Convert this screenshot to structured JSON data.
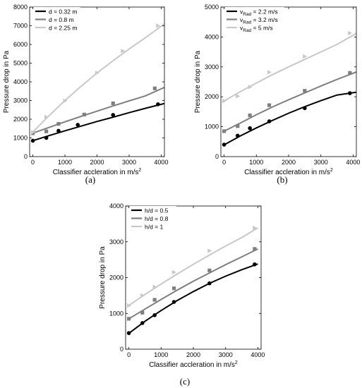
{
  "chart_data": [
    {
      "panel": "(a)",
      "type": "line",
      "xlabel": "Classifier accleration in m/s",
      "xlabel_sup": "2",
      "ylabel": "Pressure drop in Pa",
      "xlim": [
        -100,
        4100
      ],
      "ylim": [
        0,
        8000
      ],
      "xticks": [
        0,
        1000,
        2000,
        3000,
        4000
      ],
      "yticks": [
        0,
        1000,
        2000,
        3000,
        4000,
        5000,
        6000,
        7000,
        8000
      ],
      "legend_position": "top-left",
      "series": [
        {
          "name": "d = 0.32 m",
          "color": "#000000",
          "marker": "circle",
          "points": [
            [
              0,
              850
            ],
            [
              420,
              1000
            ],
            [
              800,
              1380
            ],
            [
              1400,
              1700
            ],
            [
              2500,
              2230
            ],
            [
              3900,
              2800
            ]
          ],
          "fit": [
            [
              -20,
              840
            ],
            [
              500,
              1120
            ],
            [
              1000,
              1380
            ],
            [
              1500,
              1630
            ],
            [
              2000,
              1880
            ],
            [
              2500,
              2110
            ],
            [
              3000,
              2350
            ],
            [
              3500,
              2580
            ],
            [
              4100,
              2840
            ]
          ]
        },
        {
          "name": "d = 0.8 m",
          "color": "#7f7f7f",
          "marker": "square",
          "points": [
            [
              0,
              1250
            ],
            [
              420,
              1350
            ],
            [
              800,
              1750
            ],
            [
              1600,
              2250
            ],
            [
              2500,
              2850
            ],
            [
              3800,
              3650
            ]
          ],
          "fit": [
            [
              -20,
              1240
            ],
            [
              500,
              1560
            ],
            [
              1000,
              1860
            ],
            [
              1500,
              2150
            ],
            [
              2000,
              2430
            ],
            [
              2500,
              2710
            ],
            [
              3000,
              2980
            ],
            [
              3500,
              3240
            ],
            [
              4100,
              3700
            ]
          ]
        },
        {
          "name": "d = 2.25 m",
          "color": "#c8c8c8",
          "marker": "triangle",
          "points": [
            [
              0,
              1300
            ],
            [
              420,
              2120
            ],
            [
              1000,
              2980
            ],
            [
              2000,
              4480
            ],
            [
              2800,
              5650
            ],
            [
              3900,
              7000
            ]
          ],
          "fit": [
            [
              -20,
              1280
            ],
            [
              500,
              2180
            ],
            [
              1000,
              3000
            ],
            [
              1500,
              3760
            ],
            [
              2000,
              4470
            ],
            [
              2500,
              5130
            ],
            [
              3000,
              5760
            ],
            [
              3500,
              6350
            ],
            [
              4100,
              7100
            ]
          ]
        }
      ]
    },
    {
      "panel": "(b)",
      "type": "line",
      "xlabel": "Classifier accleration in m/s",
      "xlabel_sup": "2",
      "ylabel": "Pressure drop in Pa",
      "xlim": [
        -100,
        4100
      ],
      "ylim": [
        0,
        5000
      ],
      "xticks": [
        0,
        1000,
        2000,
        3000,
        4000
      ],
      "yticks": [
        0,
        1000,
        2000,
        3000,
        4000,
        5000
      ],
      "legend_position": "top-left",
      "series": [
        {
          "name_main": "v",
          "name_sub": "Rad",
          "name_rest": " = 2.2 m/s",
          "color": "#000000",
          "marker": "circle",
          "points": [
            [
              0,
              400
            ],
            [
              420,
              700
            ],
            [
              800,
              950
            ],
            [
              1400,
              1180
            ],
            [
              2500,
              1620
            ],
            [
              3900,
              2120
            ]
          ],
          "fit": [
            [
              -20,
              380
            ],
            [
              500,
              690
            ],
            [
              1000,
              960
            ],
            [
              1500,
              1210
            ],
            [
              2000,
              1450
            ],
            [
              2500,
              1670
            ],
            [
              3000,
              1870
            ],
            [
              3500,
              2060
            ],
            [
              4100,
              2150
            ]
          ]
        },
        {
          "name_main": "v",
          "name_sub": "Rad",
          "name_rest": " = 3.2 m/s",
          "color": "#7f7f7f",
          "marker": "square",
          "points": [
            [
              0,
              850
            ],
            [
              420,
              1020
            ],
            [
              800,
              1380
            ],
            [
              1400,
              1720
            ],
            [
              2500,
              2200
            ],
            [
              3900,
              2800
            ]
          ],
          "fit": [
            [
              -20,
              840
            ],
            [
              500,
              1120
            ],
            [
              1000,
              1400
            ],
            [
              1500,
              1660
            ],
            [
              2000,
              1900
            ],
            [
              2500,
              2130
            ],
            [
              3000,
              2360
            ],
            [
              3500,
              2580
            ],
            [
              4100,
              2830
            ]
          ]
        },
        {
          "name_main": "v",
          "name_sub": "Rad",
          "name_rest": " = 5 m/s",
          "color": "#c8c8c8",
          "marker": "triangle",
          "points": [
            [
              0,
              1860
            ],
            [
              420,
              2020
            ],
            [
              800,
              2330
            ],
            [
              1400,
              2820
            ],
            [
              2500,
              3350
            ],
            [
              3900,
              4130
            ]
          ],
          "fit": [
            [
              -20,
              1850
            ],
            [
              500,
              2170
            ],
            [
              1000,
              2460
            ],
            [
              1500,
              2740
            ],
            [
              2000,
              3000
            ],
            [
              2500,
              3250
            ],
            [
              3000,
              3500
            ],
            [
              3500,
              3750
            ],
            [
              4100,
              4120
            ]
          ]
        }
      ]
    },
    {
      "panel": "(c)",
      "type": "line",
      "xlabel": "Classifier accleration in m/s",
      "xlabel_sup": "2",
      "ylabel": "Pressure drop in Pa",
      "xlim": [
        -100,
        4100
      ],
      "ylim": [
        0,
        4000
      ],
      "xticks": [
        0,
        1000,
        2000,
        3000,
        4000
      ],
      "yticks": [
        0,
        1000,
        2000,
        3000,
        4000
      ],
      "legend_position": "top-left",
      "series": [
        {
          "name": "h/d = 0.5",
          "color": "#000000",
          "marker": "circle",
          "points": [
            [
              0,
              450
            ],
            [
              420,
              730
            ],
            [
              800,
              950
            ],
            [
              1400,
              1320
            ],
            [
              2500,
              1840
            ],
            [
              3900,
              2370
            ]
          ],
          "fit": [
            [
              -20,
              430
            ],
            [
              500,
              780
            ],
            [
              1000,
              1080
            ],
            [
              1500,
              1360
            ],
            [
              2000,
              1610
            ],
            [
              2500,
              1840
            ],
            [
              3000,
              2040
            ],
            [
              3500,
              2220
            ],
            [
              4000,
              2380
            ]
          ]
        },
        {
          "name": "h/d = 0.8",
          "color": "#7f7f7f",
          "marker": "square",
          "points": [
            [
              0,
              850
            ],
            [
              420,
              1020
            ],
            [
              800,
              1380
            ],
            [
              1400,
              1700
            ],
            [
              2500,
              2200
            ],
            [
              3900,
              2800
            ]
          ],
          "fit": [
            [
              -20,
              840
            ],
            [
              500,
              1120
            ],
            [
              1000,
              1390
            ],
            [
              1500,
              1650
            ],
            [
              2000,
              1900
            ],
            [
              2500,
              2130
            ],
            [
              3000,
              2360
            ],
            [
              3500,
              2580
            ],
            [
              4000,
              2800
            ]
          ]
        },
        {
          "name": "h/d = 1",
          "color": "#c8c8c8",
          "marker": "triangle",
          "points": [
            [
              0,
              1220
            ],
            [
              420,
              1500
            ],
            [
              800,
              1740
            ],
            [
              1400,
              2150
            ],
            [
              2500,
              2750
            ],
            [
              3900,
              3390
            ]
          ],
          "fit": [
            [
              -20,
              1210
            ],
            [
              500,
              1530
            ],
            [
              1000,
              1820
            ],
            [
              1500,
              2100
            ],
            [
              2000,
              2370
            ],
            [
              2500,
              2630
            ],
            [
              3000,
              2880
            ],
            [
              3500,
              3120
            ],
            [
              4000,
              3390
            ]
          ]
        }
      ]
    }
  ]
}
